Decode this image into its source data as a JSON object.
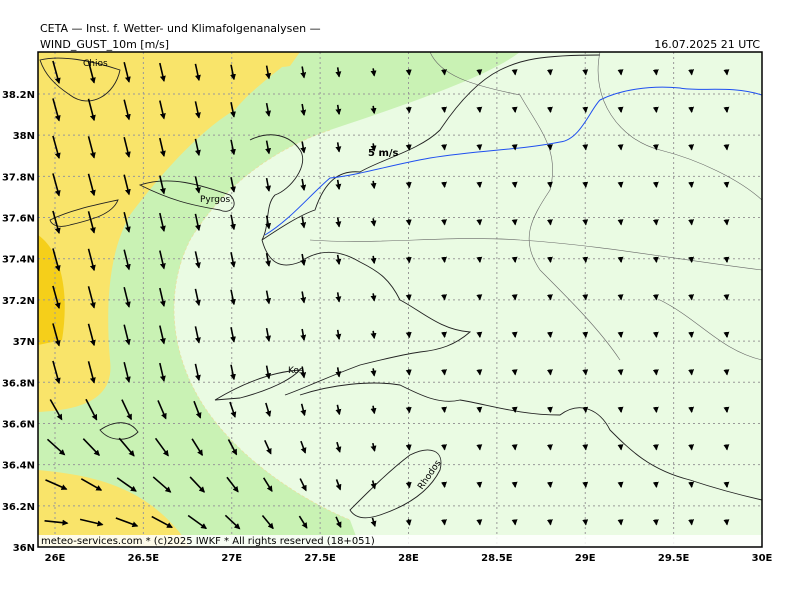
{
  "header": {
    "source": "CETA — Inst. f. Wetter- und Klimafolgenanalysen —",
    "parameter": "WIND_GUST_10m [m/s]",
    "valid_time": "16.07.2025 21 UTC"
  },
  "map": {
    "lon_labels": [
      "26E",
      "26.5E",
      "27E",
      "27.5E",
      "28E",
      "28.5E",
      "29E",
      "29.5E",
      "30E"
    ],
    "lat_labels": [
      "38.2N",
      "38N",
      "37.8N",
      "37.6N",
      "37.4N",
      "37.2N",
      "37N",
      "36.8N",
      "36.6N",
      "36.4N",
      "36.2N",
      "36N"
    ],
    "places": [
      "Chios",
      "Pyrgos",
      "Kos",
      "Rhodos"
    ],
    "contour_label": "5 m/s"
  },
  "footer": {
    "copyright": "meteo-services.com * (c)2025 IWKF * All rights reserved (18+051)"
  }
}
